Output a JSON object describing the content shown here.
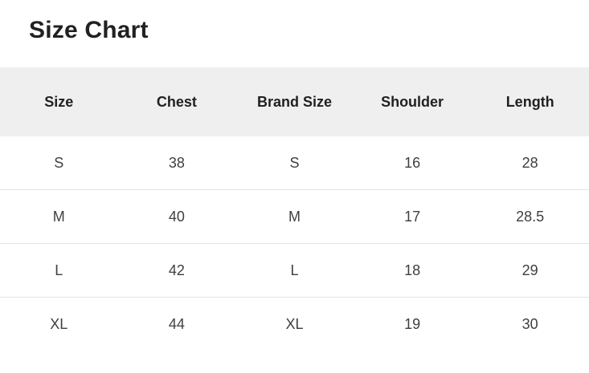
{
  "page": {
    "title": "Size Chart"
  },
  "table": {
    "columns": [
      {
        "label": "Size"
      },
      {
        "label": "Chest"
      },
      {
        "label": "Brand Size"
      },
      {
        "label": "Shoulder"
      },
      {
        "label": "Length"
      }
    ],
    "rows": [
      {
        "size": "S",
        "chest": "38",
        "brand_size": "S",
        "shoulder": "16",
        "length": "28"
      },
      {
        "size": "M",
        "chest": "40",
        "brand_size": "M",
        "shoulder": "17",
        "length": "28.5"
      },
      {
        "size": "L",
        "chest": "42",
        "brand_size": "L",
        "shoulder": "18",
        "length": "29"
      },
      {
        "size": "XL",
        "chest": "44",
        "brand_size": "XL",
        "shoulder": "19",
        "length": "30"
      }
    ]
  },
  "colors": {
    "page_bg": "#ffffff",
    "header_bg": "#efefef",
    "row_divider": "#e3e3e3",
    "title_text": "#212121",
    "header_text": "#212121",
    "body_text": "#3f3f3f"
  }
}
